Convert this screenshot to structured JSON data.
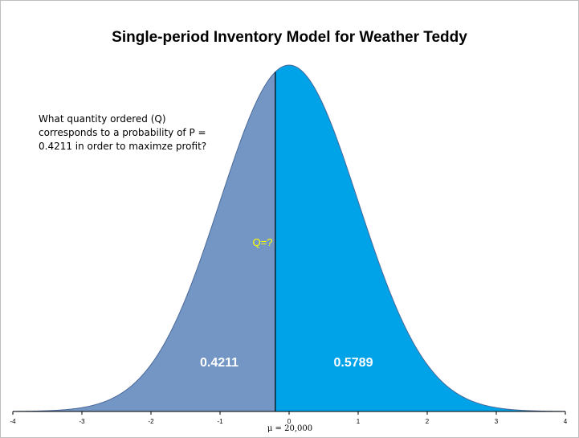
{
  "chart_data": {
    "type": "area",
    "title": "Single-period Inventory Model for Weather Teddy",
    "annotation": "What quantity ordered (Q) corresponds to a probability of P = 0.4211 in order to maximze profit?",
    "distribution": "standard normal",
    "mean_label": "μ = 20,000",
    "cutoff_z": -0.2,
    "cutoff_label": "Q=?",
    "xlim": [
      -4,
      4
    ],
    "xticks": [
      -4,
      -3,
      -2,
      -1,
      0,
      1,
      2,
      3,
      4
    ],
    "tick_labels": [
      "-4",
      "-3",
      "-2",
      "-1",
      "0",
      "1",
      "2",
      "3",
      "4"
    ],
    "series": [
      {
        "name": "left tail",
        "probability_label": "0.4211",
        "color": "#7396c4"
      },
      {
        "name": "right tail",
        "probability_label": "0.5789",
        "color": "#00a2e8"
      }
    ],
    "colors": {
      "curve_edge": "#4a6a9a",
      "cutoff_line": "#000000",
      "q_label": "#ffff00"
    }
  }
}
